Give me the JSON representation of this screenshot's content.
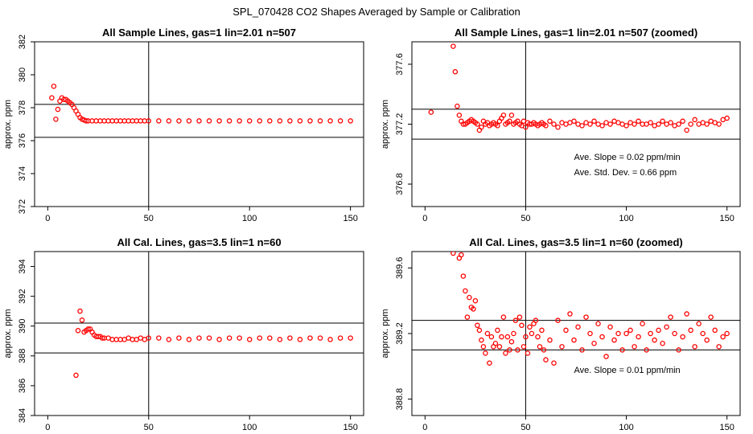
{
  "figure_title": "SPL_070428  CO2 Shapes Averaged by Sample or Calibration",
  "colors": {
    "points": "#ff0000",
    "lines": "#000000",
    "background": "#ffffff"
  },
  "chart_data": [
    {
      "id": "p1",
      "type": "scatter",
      "title": "All Sample Lines, gas=1 lin=2.01 n=507",
      "ylabel": "approx. ppm",
      "xlim": [
        0,
        150
      ],
      "ylim": [
        372,
        382
      ],
      "xticks": [
        0,
        50,
        100,
        150
      ],
      "yticks": [
        372,
        374,
        376,
        378,
        380,
        382
      ],
      "vline": 50,
      "hlines": [
        378.2,
        376.2
      ],
      "grid": false,
      "x": [
        2,
        3,
        4,
        5,
        6,
        7,
        8,
        9,
        10,
        11,
        12,
        13,
        14,
        15,
        16,
        17,
        18,
        19,
        20,
        22,
        24,
        26,
        28,
        30,
        32,
        34,
        36,
        38,
        40,
        42,
        44,
        46,
        48,
        50,
        55,
        60,
        65,
        70,
        75,
        80,
        85,
        90,
        95,
        100,
        105,
        110,
        115,
        120,
        125,
        130,
        135,
        140,
        145,
        150
      ],
      "y": [
        378.6,
        379.3,
        377.3,
        377.9,
        378.4,
        378.6,
        378.5,
        378.5,
        378.4,
        378.3,
        378.2,
        378.0,
        377.8,
        377.6,
        377.4,
        377.3,
        377.25,
        377.2,
        377.2,
        377.2,
        377.2,
        377.2,
        377.2,
        377.2,
        377.2,
        377.2,
        377.2,
        377.2,
        377.2,
        377.2,
        377.2,
        377.2,
        377.2,
        377.2,
        377.2,
        377.2,
        377.2,
        377.2,
        377.2,
        377.2,
        377.2,
        377.2,
        377.2,
        377.2,
        377.2,
        377.2,
        377.2,
        377.2,
        377.2,
        377.2,
        377.2,
        377.2,
        377.2,
        377.2
      ]
    },
    {
      "id": "p2",
      "type": "scatter",
      "title": "All Sample Lines, gas=1 lin=2.01 n=507 (zoomed)",
      "ylabel": "approx. ppm",
      "xlim": [
        0,
        150
      ],
      "ylim": [
        376.65,
        377.75
      ],
      "xticks": [
        0,
        50,
        100,
        150
      ],
      "yticks": [
        376.8,
        377.2,
        377.6
      ],
      "vline": 50,
      "hlines": [
        377.3,
        377.1
      ],
      "grid": false,
      "annotations": [
        {
          "text": "Ave. Slope =  0.02  ppm/min",
          "x": 74,
          "y": 376.96
        },
        {
          "text": "Ave. Std. Dev. =  0.66  ppm",
          "x": 74,
          "y": 376.86
        }
      ],
      "x": [
        3,
        14,
        15,
        16,
        17,
        18,
        19,
        20,
        21,
        22,
        23,
        24,
        25,
        26,
        27,
        28,
        29,
        30,
        31,
        32,
        33,
        34,
        35,
        36,
        37,
        38,
        39,
        40,
        41,
        42,
        43,
        44,
        45,
        46,
        47,
        48,
        49,
        50,
        51,
        52,
        53,
        54,
        55,
        56,
        57,
        58,
        59,
        60,
        62,
        64,
        66,
        68,
        70,
        72,
        74,
        76,
        78,
        80,
        82,
        84,
        86,
        88,
        90,
        92,
        94,
        96,
        98,
        100,
        102,
        104,
        106,
        108,
        110,
        112,
        114,
        116,
        118,
        120,
        122,
        124,
        126,
        128,
        130,
        132,
        134,
        136,
        138,
        140,
        142,
        144,
        146,
        148,
        150
      ],
      "y": [
        377.28,
        377.72,
        377.55,
        377.32,
        377.26,
        377.22,
        377.2,
        377.2,
        377.21,
        377.22,
        377.23,
        377.22,
        377.21,
        377.2,
        377.16,
        377.18,
        377.22,
        377.2,
        377.21,
        377.19,
        377.2,
        377.21,
        377.2,
        377.19,
        377.22,
        377.24,
        377.26,
        377.2,
        377.21,
        377.22,
        377.26,
        377.2,
        377.21,
        377.22,
        377.2,
        377.19,
        377.22,
        377.18,
        377.21,
        377.2,
        377.2,
        377.21,
        377.2,
        377.19,
        377.2,
        377.21,
        377.2,
        377.19,
        377.22,
        377.2,
        377.18,
        377.21,
        377.2,
        377.21,
        377.22,
        377.2,
        377.19,
        377.21,
        377.2,
        377.22,
        377.2,
        377.19,
        377.21,
        377.2,
        377.22,
        377.21,
        377.2,
        377.19,
        377.21,
        377.2,
        377.22,
        377.2,
        377.2,
        377.21,
        377.19,
        377.2,
        377.22,
        377.2,
        377.21,
        377.19,
        377.2,
        377.22,
        377.16,
        377.2,
        377.23,
        377.2,
        377.21,
        377.2,
        377.22,
        377.21,
        377.2,
        377.23,
        377.24
      ]
    },
    {
      "id": "p3",
      "type": "scatter",
      "title": "All Cal. Lines, gas=3.5 lin=1 n=60",
      "ylabel": "approx. ppm",
      "xlim": [
        0,
        150
      ],
      "ylim": [
        384,
        395
      ],
      "xticks": [
        0,
        50,
        100,
        150
      ],
      "yticks": [
        384,
        386,
        388,
        390,
        392,
        394
      ],
      "vline": 50,
      "hlines": [
        390.2,
        388.2
      ],
      "grid": false,
      "x": [
        14,
        15,
        16,
        17,
        18,
        19,
        20,
        21,
        22,
        23,
        24,
        25,
        26,
        27,
        28,
        30,
        32,
        34,
        36,
        38,
        40,
        42,
        44,
        46,
        48,
        50,
        55,
        60,
        65,
        70,
        75,
        80,
        85,
        90,
        95,
        100,
        105,
        110,
        115,
        120,
        125,
        130,
        135,
        140,
        145,
        150
      ],
      "y": [
        386.7,
        389.7,
        391.0,
        390.4,
        389.6,
        389.7,
        389.8,
        389.8,
        389.6,
        389.4,
        389.3,
        389.3,
        389.3,
        389.2,
        389.2,
        389.2,
        389.1,
        389.1,
        389.1,
        389.1,
        389.2,
        389.1,
        389.1,
        389.2,
        389.1,
        389.2,
        389.2,
        389.1,
        389.2,
        389.1,
        389.2,
        389.2,
        389.1,
        389.2,
        389.2,
        389.1,
        389.2,
        389.2,
        389.1,
        389.2,
        389.1,
        389.2,
        389.2,
        389.1,
        389.2,
        389.2
      ]
    },
    {
      "id": "p4",
      "type": "scatter",
      "title": "All Cal. Lines, gas=3.5 lin=1 n=60 (zoomed)",
      "ylabel": "approx. ppm",
      "xlim": [
        0,
        150
      ],
      "ylim": [
        388.7,
        389.7
      ],
      "xticks": [
        0,
        50,
        100,
        150
      ],
      "yticks": [
        388.8,
        389.2,
        389.6
      ],
      "vline": 50,
      "hlines": [
        389.28,
        389.1
      ],
      "grid": false,
      "annotations": [
        {
          "text": "Ave. Slope =  0.01  ppm/min",
          "x": 74,
          "y": 388.96
        }
      ],
      "x": [
        14,
        17,
        18,
        19,
        20,
        21,
        22,
        23,
        24,
        25,
        26,
        27,
        28,
        29,
        30,
        31,
        32,
        33,
        34,
        35,
        36,
        37,
        38,
        39,
        40,
        41,
        42,
        43,
        44,
        45,
        46,
        47,
        48,
        49,
        50,
        51,
        52,
        53,
        54,
        55,
        56,
        57,
        58,
        59,
        60,
        62,
        64,
        66,
        68,
        70,
        72,
        74,
        76,
        78,
        80,
        82,
        84,
        86,
        88,
        90,
        92,
        94,
        96,
        98,
        100,
        102,
        104,
        106,
        108,
        110,
        112,
        114,
        116,
        118,
        120,
        122,
        124,
        126,
        128,
        130,
        132,
        134,
        136,
        138,
        140,
        142,
        144,
        146,
        148,
        150
      ],
      "y": [
        389.69,
        389.66,
        389.68,
        389.55,
        389.46,
        389.3,
        389.42,
        389.36,
        389.35,
        389.4,
        389.25,
        389.22,
        389.16,
        389.12,
        389.08,
        389.2,
        389.02,
        389.18,
        389.12,
        389.14,
        389.22,
        389.12,
        389.18,
        389.3,
        389.08,
        389.18,
        389.1,
        389.15,
        389.2,
        389.28,
        389.1,
        389.3,
        389.25,
        389.12,
        389.18,
        389.08,
        389.24,
        389.2,
        389.26,
        389.28,
        389.18,
        389.12,
        389.22,
        389.1,
        389.04,
        389.16,
        389.02,
        389.28,
        389.12,
        389.22,
        389.32,
        389.16,
        389.24,
        389.1,
        389.3,
        389.2,
        389.14,
        389.26,
        389.18,
        389.06,
        389.24,
        389.16,
        389.2,
        389.1,
        389.2,
        389.22,
        389.12,
        389.18,
        389.26,
        389.1,
        389.2,
        389.16,
        389.22,
        389.14,
        389.24,
        389.3,
        389.2,
        389.1,
        389.18,
        389.32,
        389.22,
        389.12,
        389.26,
        389.2,
        389.16,
        389.3,
        389.22,
        389.12,
        389.18,
        389.2
      ]
    }
  ]
}
